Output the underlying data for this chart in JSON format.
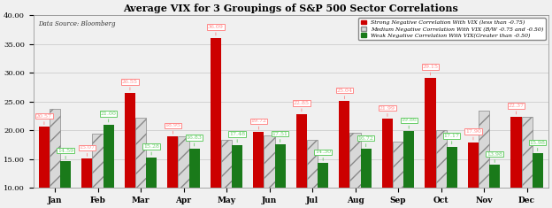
{
  "title": "Average VIX for 3 Groupings of S&P 500 Sector Correlations",
  "data_source": "Data Source: Bloomberg",
  "months": [
    "Jan",
    "Feb",
    "Mar",
    "Apr",
    "May",
    "Jun",
    "Jul",
    "Aug",
    "Sep",
    "Oct",
    "Nov",
    "Dec"
  ],
  "strong": [
    20.57,
    15.07,
    26.55,
    18.95,
    36.09,
    19.72,
    22.85,
    25.04,
    21.99,
    29.15,
    17.9,
    22.37
  ],
  "medium": [
    23.8,
    19.4,
    22.2,
    18.9,
    18.3,
    19.1,
    18.4,
    19.5,
    18.0,
    20.1,
    23.4,
    22.4
  ],
  "weak": [
    14.59,
    21.0,
    15.28,
    16.83,
    17.48,
    17.51,
    14.3,
    16.72,
    19.86,
    17.17,
    13.98,
    15.98
  ],
  "ylim": [
    10.0,
    40.0
  ],
  "yticks": [
    10.0,
    15.0,
    20.0,
    25.0,
    30.0,
    35.0,
    40.0
  ],
  "bar_width": 0.25,
  "strong_color": "#cc0000",
  "medium_facecolor": "#d8d8d8",
  "medium_edgecolor": "#888888",
  "weak_color": "#1a7a1a",
  "label_strong_color": "#ff8888",
  "label_weak_color": "#66cc66",
  "legend_strong": "Strong Negative Correlation With VIX (less than -0.75)",
  "legend_medium": "Medium Negative Correlation With VIX (B/W -0.75 and -0.50)",
  "legend_weak": "Weak Negative Correlation With VIX(Greater than -0.50)",
  "background_color": "#f0f0f0",
  "label_fontsize": 4.5,
  "axis_fontsize": 6.0,
  "title_fontsize": 8.0
}
